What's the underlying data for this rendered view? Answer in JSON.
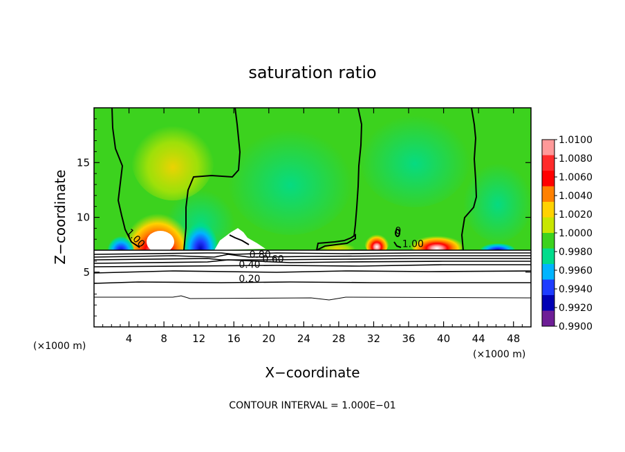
{
  "chart_data": {
    "type": "heatmap",
    "title": "saturation ratio",
    "xlabel": "X−coordinate",
    "ylabel": "Z−coordinate",
    "x_unit_left": "(×1000 m)",
    "x_unit_right": "(×1000 m)",
    "xlim": [
      0,
      50
    ],
    "ylim": [
      0,
      20
    ],
    "x_ticks": [
      4,
      8,
      12,
      16,
      20,
      24,
      28,
      32,
      36,
      40,
      44,
      48
    ],
    "y_ticks": [
      5,
      10,
      15
    ],
    "colorbar": {
      "levels": [
        "1.0100",
        "1.0080",
        "1.0060",
        "1.0040",
        "1.0020",
        "1.0000",
        "0.9980",
        "0.9960",
        "0.9940",
        "0.9920",
        "0.9900"
      ],
      "colors": [
        "#ff9999",
        "#ff2a2a",
        "#ff0000",
        "#ff8000",
        "#ffd200",
        "#c8e600",
        "#3cd21e",
        "#00dc8c",
        "#00b4ff",
        "#1e3cff",
        "#0000b4",
        "#6e1e96"
      ]
    },
    "background_color": "#3cd21e",
    "contour_labels": [
      {
        "text": "1.00",
        "x": 4.5,
        "z": 7.9,
        "rot": 45
      },
      {
        "text": "1.00",
        "x": 36.5,
        "z": 7.3,
        "rot": 0
      },
      {
        "text": "0",
        "x": 34.8,
        "z": 8.5,
        "rot": 0
      },
      {
        "text": "0.80",
        "x": 19.0,
        "z": 6.3,
        "rot": 0
      },
      {
        "text": "0.60",
        "x": 20.5,
        "z": 5.9,
        "rot": 0
      },
      {
        "text": "0.40",
        "x": 17.8,
        "z": 5.4,
        "rot": 0
      },
      {
        "text": "0.20",
        "x": 17.8,
        "z": 4.1,
        "rot": 0
      }
    ],
    "footer": "CONTOUR INTERVAL = 1.000E−01"
  }
}
